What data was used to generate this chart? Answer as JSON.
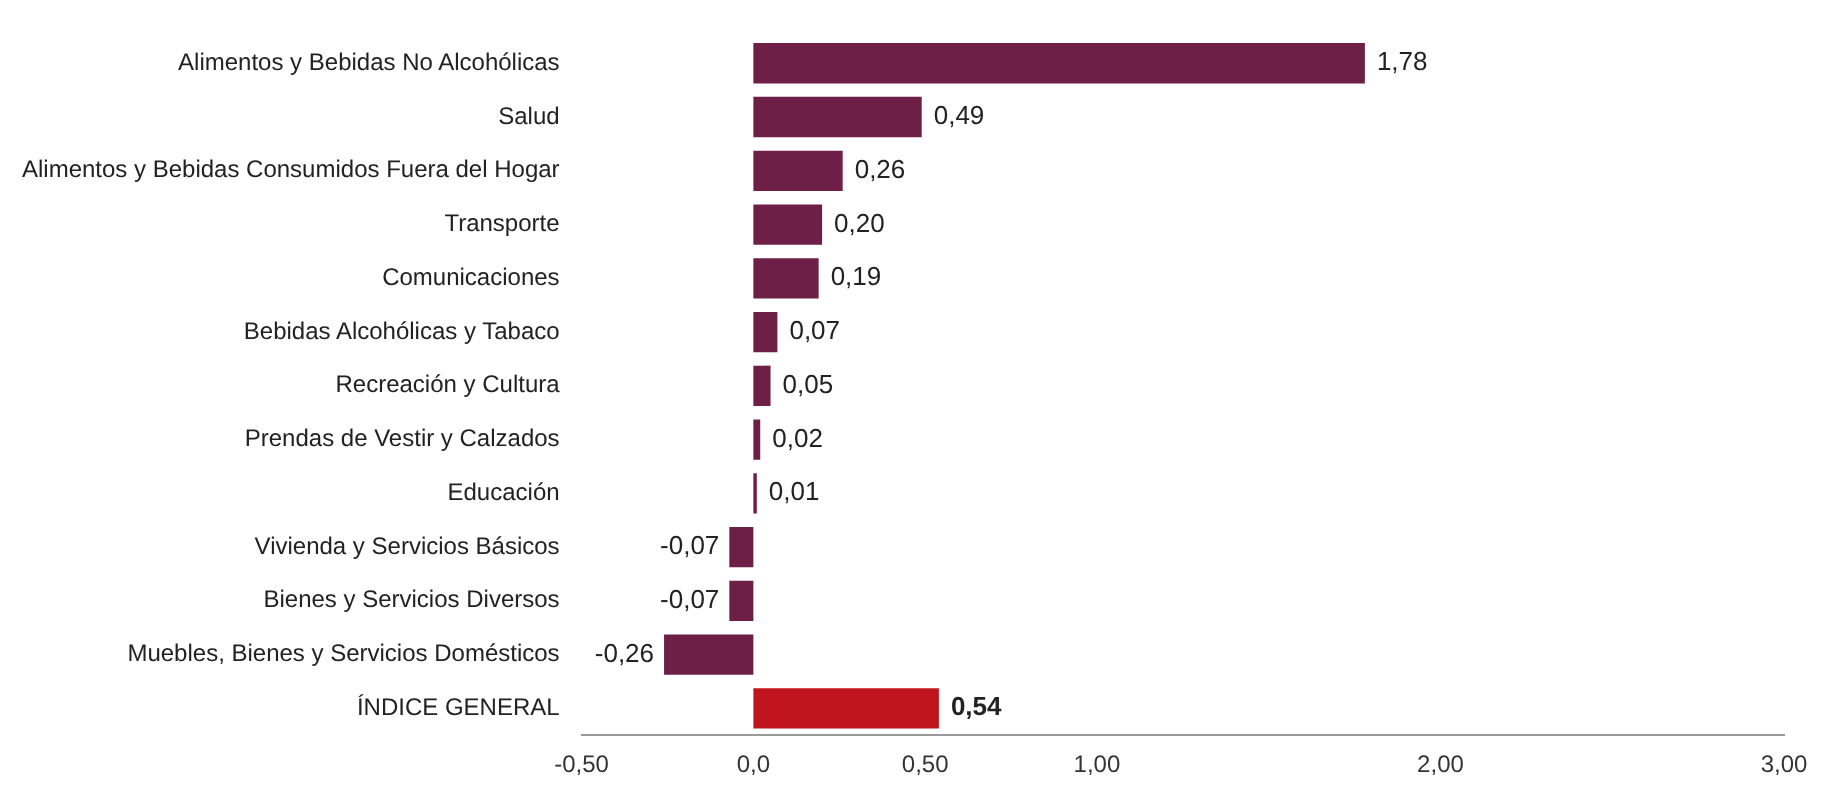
{
  "chart_data": {
    "type": "bar",
    "orientation": "horizontal",
    "categories": [
      "Alimentos y Bebidas No Alcohólicas",
      "Salud",
      "Alimentos y Bebidas Consumidos Fuera del Hogar",
      "Transporte",
      "Comunicaciones",
      "Bebidas Alcohólicas y Tabaco",
      "Recreación y Cultura",
      "Prendas de Vestir y Calzados",
      "Educación",
      "Vivienda y Servicios Básicos",
      "Bienes y Servicios Diversos",
      "Muebles, Bienes y Servicios Domésticos",
      "ÍNDICE GENERAL"
    ],
    "values": [
      1.78,
      0.49,
      0.26,
      0.2,
      0.19,
      0.07,
      0.05,
      0.02,
      0.01,
      -0.07,
      -0.07,
      -0.26,
      0.54
    ],
    "colors": [
      "#6e1f48",
      "#6e1f48",
      "#6e1f48",
      "#6e1f48",
      "#6e1f48",
      "#6e1f48",
      "#6e1f48",
      "#6e1f48",
      "#6e1f48",
      "#6e1f48",
      "#6e1f48",
      "#6e1f48",
      "#c0141e"
    ],
    "value_labels": [
      "1,78",
      "0,49",
      "0,26",
      "0,20",
      "0,19",
      "0,07",
      "0,05",
      "0,02",
      "0,01",
      "-0,07",
      "-0,07",
      "-0,26",
      "0,54"
    ],
    "xlim": [
      -0.5,
      3
    ],
    "xticks": [
      {
        "value": -0.5,
        "label": "-0,50"
      },
      {
        "value": 0,
        "label": "0,0"
      },
      {
        "value": 0.5,
        "label": "0,50"
      },
      {
        "value": 1,
        "label": "1,00"
      },
      {
        "value": 2,
        "label": "2,00"
      },
      {
        "value": 3,
        "label": "3,00"
      }
    ],
    "grid": false,
    "legend": false
  }
}
